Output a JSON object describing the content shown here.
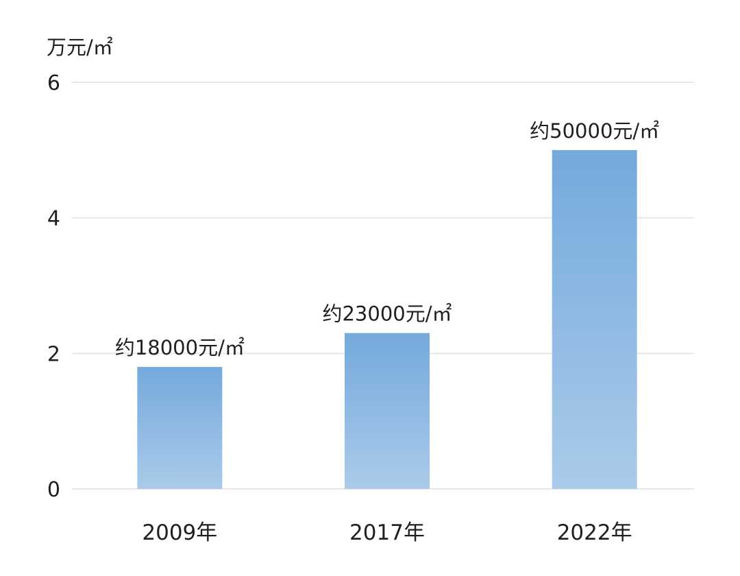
{
  "chart_data": {
    "type": "bar",
    "unit_label": "万元/㎡",
    "categories": [
      "2009年",
      "2017年",
      "2022年"
    ],
    "values": [
      1.8,
      2.3,
      5.0
    ],
    "data_labels": [
      "约18000元/㎡",
      "约23000元/㎡",
      "约50000元/㎡"
    ],
    "y_ticks": [
      0,
      2,
      4,
      6
    ],
    "ylim": [
      0,
      6
    ],
    "grid": true,
    "legend": "none",
    "colors": {
      "bar_top": "#74a9dc",
      "bar_bottom": "#aacbea",
      "grid": "#e6e6e6"
    }
  }
}
